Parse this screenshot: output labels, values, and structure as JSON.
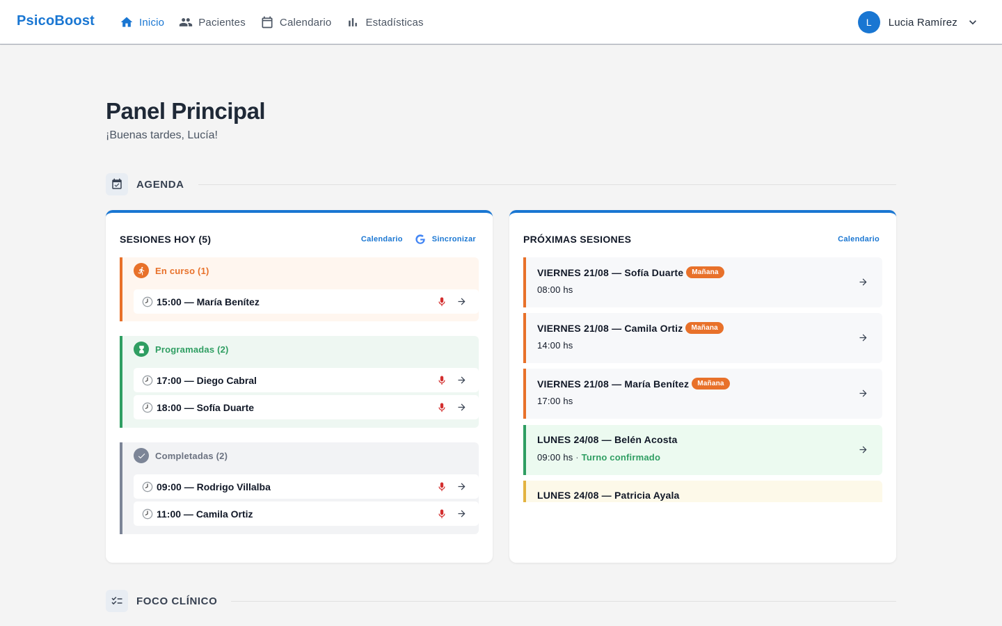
{
  "app": {
    "brand": "PsicoBoost",
    "nav": [
      {
        "label": "Inicio",
        "icon": "home-icon",
        "active": true
      },
      {
        "label": "Pacientes",
        "icon": "people-icon",
        "active": false
      },
      {
        "label": "Calendario",
        "icon": "calendar-icon",
        "active": false
      },
      {
        "label": "Estadísticas",
        "icon": "bar-chart-icon",
        "active": false
      }
    ],
    "user": {
      "initial": "L",
      "name": "Lucia Ramírez"
    }
  },
  "page": {
    "title": "Panel Principal",
    "subtitle": "¡Buenas tardes, Lucía!"
  },
  "sections": {
    "agenda": {
      "title": "AGENDA",
      "icon": "calendar-check-icon"
    },
    "foco": {
      "title": "FOCO CLÍNICO",
      "icon": "checklist-icon"
    }
  },
  "today": {
    "title": "SESIONES HOY (5)",
    "calendar_link": "Calendario",
    "sync_label": "Sincronizar",
    "groups": [
      {
        "label": "En curso (1)",
        "color": "#e8712a",
        "icon": "running-icon",
        "rows": [
          {
            "text": "15:00 — María Benítez"
          }
        ]
      },
      {
        "label": "Programadas (2)",
        "color": "#2f9e62",
        "icon": "hourglass-icon",
        "rows": [
          {
            "text": "17:00 — Diego Cabral"
          },
          {
            "text": "18:00 — Sofía Duarte"
          }
        ]
      },
      {
        "label": "Completadas (2)",
        "color": "#7c8597",
        "icon": "check-icon",
        "rows": [
          {
            "text": "09:00 — Rodrigo Villalba"
          },
          {
            "text": "11:00 — Camila Ortiz"
          }
        ]
      }
    ]
  },
  "upcoming": {
    "title": "PRÓXIMAS SESIONES",
    "calendar_link": "Calendario",
    "items": [
      {
        "title": "VIERNES 21/08 — Sofía Duarte",
        "tag": "Mañana",
        "time": "08:00 hs"
      },
      {
        "title": "VIERNES 21/08 — Camila Ortiz",
        "tag": "Mañana",
        "time": "14:00 hs"
      },
      {
        "title": "VIERNES 21/08 — María Benítez",
        "tag": "Mañana",
        "time": "17:00 hs"
      },
      {
        "title": "LUNES 24/08 — Belén Acosta",
        "time": "09:00 hs",
        "separator": "·",
        "status": "Turno confirmado"
      },
      {
        "title": "LUNES 24/08 — Patricia Ayala"
      }
    ]
  },
  "colors": {
    "accent": "#1976d2",
    "in_progress": "#e8712a",
    "scheduled": "#2f9e62",
    "completed": "#7c8597",
    "record": "#d32f2f"
  }
}
